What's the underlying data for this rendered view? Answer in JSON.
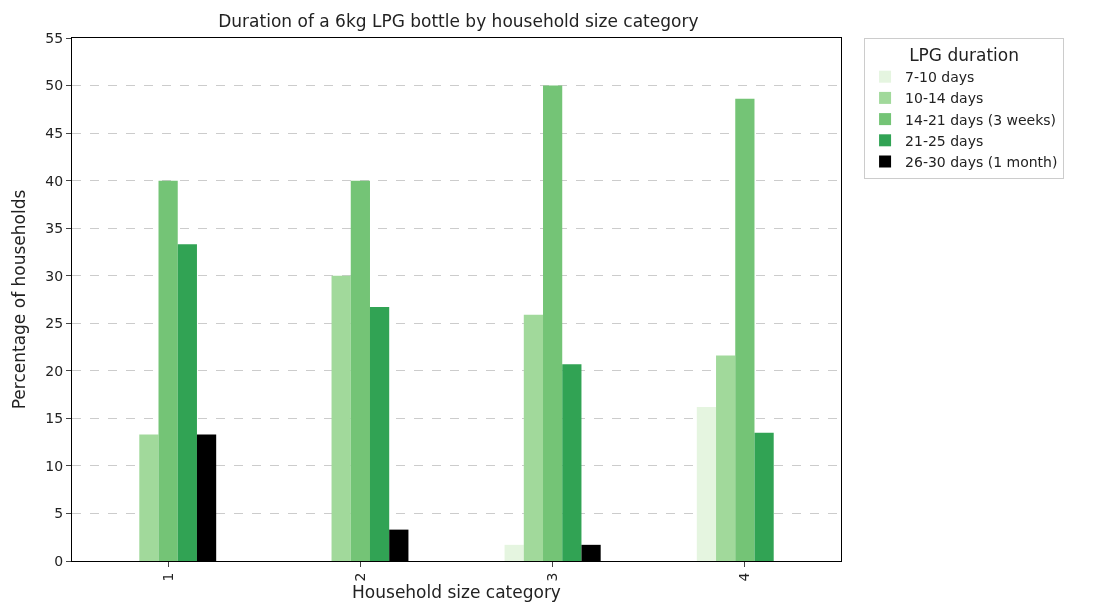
{
  "chart_data": {
    "type": "bar",
    "title": "Duration of a 6kg LPG bottle by household size category",
    "xlabel": "Household size category",
    "ylabel": "Percentage of households",
    "legend_title": "LPG duration",
    "categories": [
      "1",
      "2",
      "3",
      "4"
    ],
    "series": [
      {
        "name": "7-10 days",
        "color": "#e5f5e0",
        "values": [
          0,
          0,
          1.7,
          16.2
        ]
      },
      {
        "name": "10-14 days",
        "color": "#a1d99b",
        "values": [
          13.3,
          30,
          25.9,
          21.6
        ]
      },
      {
        "name": "14-21 days (3 weeks)",
        "color": "#74c476",
        "values": [
          40,
          40,
          50,
          48.6
        ]
      },
      {
        "name": "21-25 days",
        "color": "#31a354",
        "values": [
          33.3,
          26.7,
          20.7,
          13.5
        ]
      },
      {
        "name": "26-30 days (1 month)",
        "color": "#000000",
        "values": [
          13.3,
          3.3,
          1.7,
          0
        ]
      }
    ],
    "ylim": [
      0,
      55
    ],
    "yticks": [
      0,
      5,
      10,
      15,
      20,
      25,
      30,
      35,
      40,
      45,
      50,
      55
    ],
    "grid": "y",
    "legend": "top right"
  }
}
